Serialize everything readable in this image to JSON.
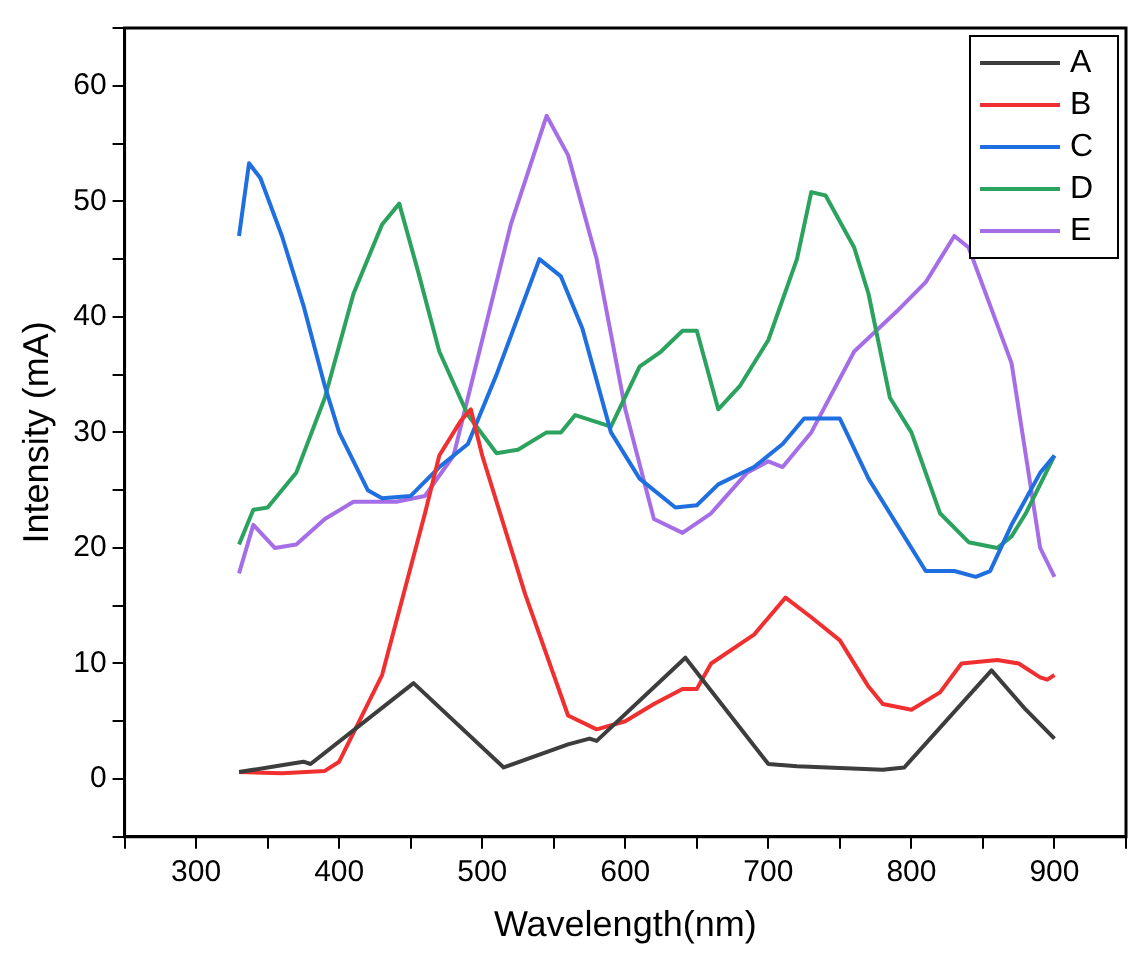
{
  "chart_data": {
    "type": "line",
    "xlabel": "Wavelength(nm)",
    "ylabel": "Intensity (mA)",
    "xlim": [
      250,
      950
    ],
    "ylim": [
      -5,
      65
    ],
    "xticks": [
      {
        "value": 250,
        "label": null
      },
      300,
      {
        "value": 350,
        "label": null
      },
      400,
      {
        "value": 450,
        "label": null
      },
      500,
      {
        "value": 550,
        "label": null
      },
      600,
      {
        "value": 650,
        "label": null
      },
      700,
      {
        "value": 750,
        "label": null
      },
      800,
      {
        "value": 850,
        "label": null
      },
      900,
      {
        "value": 950,
        "label": null
      }
    ],
    "yticks": [
      {
        "value": -5,
        "label": null
      },
      0,
      {
        "value": 5,
        "label": null
      },
      10,
      {
        "value": 15,
        "label": null
      },
      20,
      {
        "value": 25,
        "label": null
      },
      30,
      {
        "value": 35,
        "label": null
      },
      40,
      {
        "value": 45,
        "label": null
      },
      50,
      {
        "value": 55,
        "label": null
      },
      60,
      {
        "value": 65,
        "label": null
      }
    ],
    "grid": false,
    "legend": "top right",
    "marker": "none",
    "line_style": "solid",
    "series": [
      {
        "name": "A",
        "color": "#3d3d3d",
        "x": [
          330,
          375,
          380,
          452,
          515,
          560,
          575,
          580,
          642,
          700,
          720,
          780,
          795,
          856,
          880,
          900
        ],
        "values": [
          0.6,
          1.5,
          1.3,
          8.3,
          1.0,
          3,
          3.5,
          3.3,
          10.5,
          1.3,
          1.1,
          0.8,
          1.0,
          9.4,
          6,
          3.5
        ]
      },
      {
        "name": "B",
        "color": "#f03030",
        "x": [
          330,
          360,
          390,
          400,
          430,
          460,
          470,
          485,
          492,
          500,
          530,
          560,
          580,
          600,
          620,
          640,
          650,
          660,
          690,
          712,
          730,
          750,
          770,
          780,
          800,
          820,
          835,
          860,
          875,
          890,
          895,
          900
        ],
        "values": [
          0.6,
          0.5,
          0.7,
          1.5,
          9,
          23,
          28,
          31,
          32,
          28,
          16,
          5.5,
          4.3,
          5,
          6.5,
          7.8,
          7.8,
          10,
          12.5,
          15.7,
          14,
          12,
          8,
          6.5,
          6,
          7.5,
          10,
          10.3,
          10,
          8.8,
          8.6,
          9
        ]
      },
      {
        "name": "C",
        "color": "#1f6fe0",
        "x": [
          330,
          337,
          345,
          360,
          375,
          390,
          400,
          420,
          430,
          450,
          470,
          490,
          510,
          540,
          555,
          570,
          590,
          610,
          635,
          650,
          665,
          690,
          710,
          725,
          750,
          770,
          790,
          810,
          830,
          845,
          855,
          870,
          890,
          900
        ],
        "values": [
          47,
          53.3,
          52,
          47,
          41,
          34,
          30,
          25,
          24.3,
          24.5,
          27,
          29,
          35,
          45,
          43.5,
          39,
          30,
          26,
          23.5,
          23.7,
          25.5,
          27,
          29,
          31.2,
          31.2,
          26,
          22,
          18,
          18,
          17.5,
          18,
          22,
          26.5,
          28
        ]
      },
      {
        "name": "D",
        "color": "#2ca25f",
        "x": [
          330,
          340,
          350,
          370,
          390,
          410,
          430,
          442,
          455,
          470,
          490,
          510,
          525,
          545,
          555,
          565,
          590,
          610,
          625,
          640,
          650,
          665,
          680,
          700,
          720,
          730,
          740,
          760,
          770,
          785,
          800,
          820,
          840,
          860,
          870,
          880,
          900
        ],
        "values": [
          20.3,
          23.3,
          23.5,
          26.5,
          33,
          42,
          48,
          49.8,
          44,
          37,
          31.5,
          28.2,
          28.5,
          30,
          30,
          31.5,
          30.5,
          35.7,
          37,
          38.8,
          38.8,
          32,
          34,
          38,
          45,
          50.8,
          50.5,
          46,
          42,
          33,
          30,
          23,
          20.5,
          20,
          21,
          23,
          28
        ]
      },
      {
        "name": "E",
        "color": "#a56ee6",
        "x": [
          330,
          340,
          355,
          370,
          390,
          410,
          440,
          460,
          480,
          500,
          520,
          545,
          560,
          580,
          600,
          620,
          640,
          660,
          685,
          700,
          710,
          730,
          760,
          790,
          810,
          830,
          840,
          870,
          880,
          890,
          900
        ],
        "values": [
          17.8,
          22,
          20,
          20.3,
          22.5,
          24,
          24,
          24.5,
          28,
          38,
          48,
          57.4,
          54,
          45,
          32,
          22.5,
          21.3,
          23,
          26.5,
          27.5,
          27,
          30,
          37,
          40.5,
          43,
          47,
          46,
          36,
          28,
          20,
          17.5
        ]
      }
    ]
  }
}
